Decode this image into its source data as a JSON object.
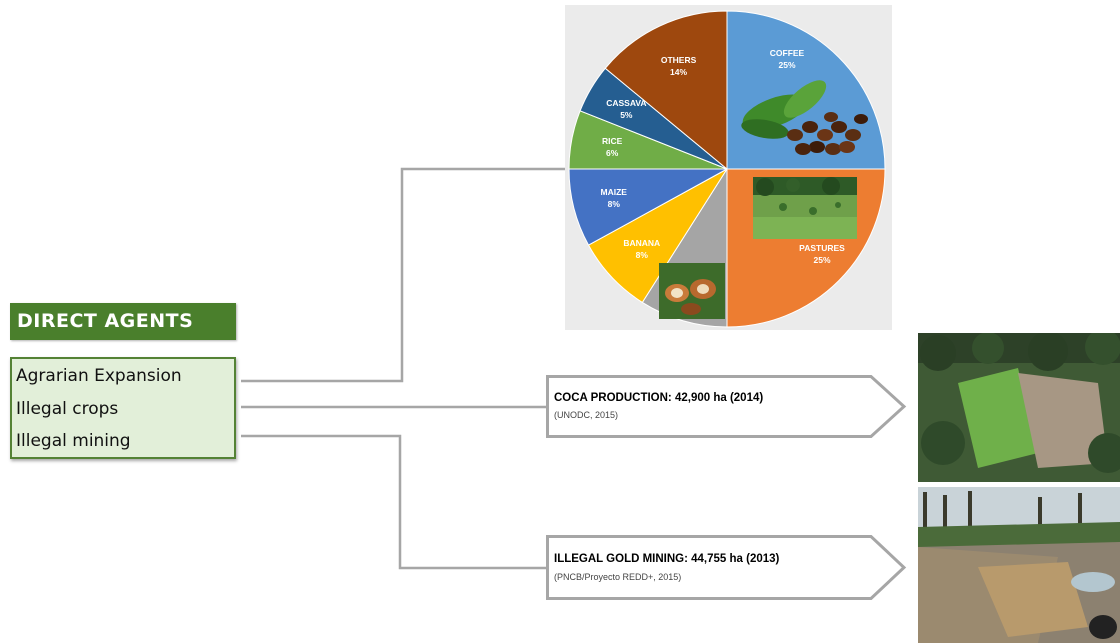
{
  "direct_agents": {
    "title": "DIRECT AGENTS",
    "items": [
      "Agrarian Expansion",
      "Illegal crops",
      "Illegal mining"
    ]
  },
  "chart_data": {
    "type": "pie",
    "slices": [
      {
        "label": "COFFEE",
        "value": 25,
        "display": "25%",
        "color": "#5b9bd5"
      },
      {
        "label": "PASTURES",
        "value": 25,
        "display": "25%",
        "color": "#ed7d31"
      },
      {
        "label": "COCOA",
        "value": 9,
        "display": "9%",
        "color": "#a5a5a5"
      },
      {
        "label": "BANANA",
        "value": 8,
        "display": "8%",
        "color": "#ffc000"
      },
      {
        "label": "MAIZE",
        "value": 8,
        "display": "8%",
        "color": "#4472c4"
      },
      {
        "label": "RICE",
        "value": 6,
        "display": "6%",
        "color": "#70ad47"
      },
      {
        "label": "CASSAVA",
        "value": 5,
        "display": "5%",
        "color": "#255e91"
      },
      {
        "label": "OTHERS",
        "value": 14,
        "display": "14%",
        "color": "#9e480e"
      }
    ]
  },
  "callouts": {
    "coca": {
      "title": "COCA PRODUCTION: 42,900 ha (2014)",
      "source": "(UNODC, 2015)"
    },
    "gold": {
      "title": "ILLEGAL GOLD MINING:  44,755 ha (2013)",
      "source": "(PNCB/Proyecto REDD+, 2015)"
    }
  },
  "colors": {
    "header_green": "#4a7f2c",
    "box_fill": "#e2efd9",
    "box_border": "#548235",
    "connector": "#a6a6a6"
  }
}
